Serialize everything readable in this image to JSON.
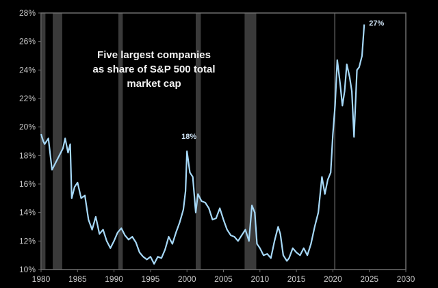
{
  "chart_data": {
    "type": "line",
    "title": [
      "Five largest companies",
      "as share of S&P 500 total",
      "market cap"
    ],
    "xlabel": "",
    "ylabel": "",
    "xlim": [
      1980,
      2030
    ],
    "ylim": [
      10,
      28
    ],
    "grid": false,
    "xticks": [
      1980,
      1985,
      1990,
      1995,
      2000,
      2005,
      2010,
      2015,
      2020,
      2025,
      2030
    ],
    "yticks": [
      10,
      12,
      14,
      16,
      18,
      20,
      22,
      24,
      26,
      28
    ],
    "ytick_labels": [
      "10%",
      "12%",
      "14%",
      "16%",
      "18%",
      "20%",
      "22%",
      "24%",
      "26%",
      "28%"
    ],
    "xtick_labels": [
      "1980",
      "1985",
      "1990",
      "1995",
      "2000",
      "2005",
      "2010",
      "2015",
      "2020",
      "2025",
      "2030"
    ],
    "colors": {
      "line": "#a6d8f7",
      "recession": "#3a3a3a",
      "axis": "#6e6e6e",
      "background": "#000000"
    },
    "shaded_periods": [
      [
        1980.1,
        1980.6
      ],
      [
        1981.6,
        1982.9
      ],
      [
        1990.6,
        1991.2
      ],
      [
        2001.2,
        2001.9
      ],
      [
        2007.9,
        2009.5
      ],
      [
        2020.15,
        2020.35
      ]
    ],
    "annotations": [
      {
        "text": "18%",
        "x": 2000,
        "y": 18.3
      },
      {
        "text": "27%",
        "x": 2024.3,
        "y": 27.2
      }
    ],
    "series": [
      {
        "x": [
          1980,
          1980.3,
          1980.5,
          1981,
          1981.5,
          1982,
          1982.5,
          1983,
          1983.3,
          1983.7,
          1984,
          1984.2,
          1984.6,
          1985,
          1985.5,
          1986,
          1986.5,
          1987,
          1987.5,
          1988,
          1988.5,
          1989,
          1989.5,
          1990,
          1990.5,
          1991,
          1991.5,
          1992,
          1992.5,
          1993,
          1993.5,
          1994,
          1994.5,
          1995,
          1995.5,
          1996,
          1996.5,
          1997,
          1997.5,
          1998,
          1998.5,
          1999,
          1999.5,
          1999.8,
          2000,
          2000.4,
          2000.8,
          2001.2,
          2001.5,
          2002,
          2002.5,
          2003,
          2003.5,
          2004,
          2004.5,
          2005,
          2005.5,
          2006,
          2006.5,
          2007,
          2007.5,
          2008,
          2008.5,
          2008.9,
          2009.3,
          2009.6,
          2010,
          2010.5,
          2011,
          2011.5,
          2012,
          2012.5,
          2012.8,
          2013.2,
          2013.7,
          2014,
          2014.5,
          2015,
          2015.5,
          2016,
          2016.5,
          2017,
          2017.5,
          2018,
          2018.5,
          2018.9,
          2019.3,
          2019.7,
          2020,
          2020.3,
          2020.6,
          2021,
          2021.3,
          2021.6,
          2021.9,
          2022.3,
          2022.6,
          2022.9,
          2023.3,
          2023.6,
          2024,
          2024.3
        ],
        "values": [
          19.5,
          19.0,
          18.8,
          19.2,
          17.0,
          17.5,
          18.0,
          18.5,
          19.2,
          18.2,
          18.8,
          15.0,
          15.8,
          16.1,
          15.0,
          15.2,
          13.5,
          12.8,
          13.7,
          12.5,
          12.8,
          12.0,
          11.5,
          12.0,
          12.6,
          12.9,
          12.4,
          12.1,
          12.3,
          11.9,
          11.2,
          10.9,
          10.7,
          10.9,
          10.4,
          10.9,
          10.8,
          11.4,
          12.3,
          11.8,
          12.6,
          13.3,
          14.2,
          15.5,
          18.3,
          16.8,
          16.5,
          14.0,
          15.3,
          14.8,
          14.7,
          14.3,
          13.5,
          13.6,
          14.3,
          13.5,
          12.8,
          12.4,
          12.3,
          12.0,
          12.4,
          12.8,
          12.0,
          14.5,
          14.0,
          11.8,
          11.5,
          11.0,
          11.1,
          10.8,
          12.0,
          13.0,
          12.5,
          11.0,
          10.6,
          10.8,
          11.5,
          11.2,
          11.0,
          11.5,
          11.0,
          11.8,
          13.0,
          14.0,
          16.5,
          15.3,
          16.3,
          16.8,
          19.5,
          21.5,
          24.7,
          23.0,
          21.5,
          22.5,
          24.4,
          23.5,
          22.5,
          19.3,
          24.0,
          24.2,
          25.0,
          27.2
        ]
      }
    ]
  }
}
